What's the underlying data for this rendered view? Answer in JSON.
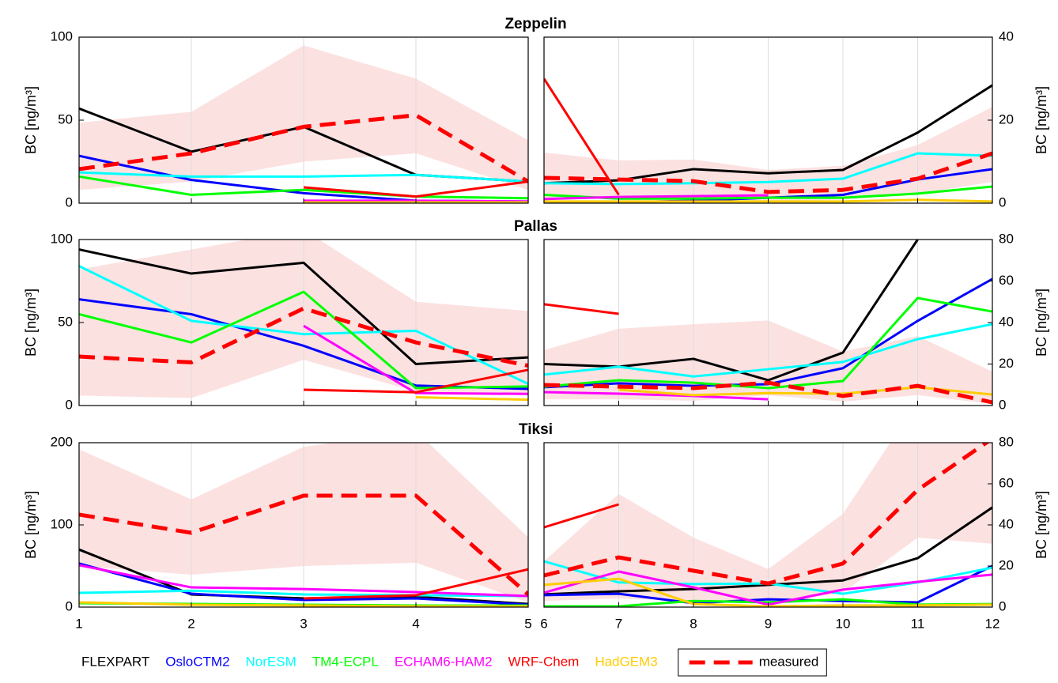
{
  "chart_data": [
    {
      "type": "line",
      "title": "Zeppelin",
      "y_label": "BC [ng/m³]",
      "x": [
        1,
        2,
        3,
        4,
        5
      ],
      "xlim": [
        1,
        5
      ],
      "xticks": [
        1,
        2,
        3,
        4,
        5
      ],
      "show_xtick_labels": false,
      "ylim": [
        0,
        100
      ],
      "yticks": [
        0,
        50,
        100
      ],
      "y_side": "left",
      "grid": true,
      "band": {
        "color": "#fce1e1",
        "low": [
          8,
          13,
          25,
          30,
          8
        ],
        "high": [
          48.5,
          55,
          95,
          75,
          38
        ]
      },
      "series": [
        {
          "name": "FLEXPART",
          "color": "#000000",
          "values": [
            57,
            31,
            46,
            17,
            13
          ]
        },
        {
          "name": "OsloCTM2",
          "color": "#0000ff",
          "values": [
            28.5,
            14,
            6,
            1.5,
            1
          ]
        },
        {
          "name": "NorESM",
          "color": "#00ffff",
          "values": [
            18.5,
            16,
            16,
            17,
            13
          ]
        },
        {
          "name": "TM4-ECPL",
          "color": "#00ff00",
          "values": [
            16,
            5,
            8,
            4,
            3
          ]
        },
        {
          "name": "ECHAM6-HAM2",
          "color": "#ff00ff",
          "values": [
            null,
            null,
            1.5,
            1.5,
            1
          ]
        },
        {
          "name": "WRF-Chem",
          "color": "#ff0000",
          "values": [
            null,
            null,
            9.5,
            4,
            13
          ]
        },
        {
          "name": "HadGEM3",
          "color": "#ffcc00",
          "values": [
            null,
            null,
            0.5,
            0.5,
            0.5
          ]
        },
        {
          "name": "measured",
          "color": "#ff0000",
          "dashed": true,
          "values": [
            20.5,
            30,
            46,
            53,
            13
          ]
        }
      ]
    },
    {
      "type": "line",
      "y_label": "BC [ng/m³]",
      "x": [
        6,
        7,
        8,
        9,
        10,
        11,
        12
      ],
      "xlim": [
        6,
        12
      ],
      "xticks": [
        6,
        7,
        8,
        9,
        10,
        11,
        12
      ],
      "show_xtick_labels": false,
      "ylim": [
        0,
        40
      ],
      "yticks": [
        0,
        20,
        40
      ],
      "y_side": "right",
      "grid": true,
      "band": {
        "color": "#fce1e1",
        "low": [
          1.3,
          1.1,
          1,
          0.6,
          0.8,
          2.3,
          5.1
        ],
        "high": [
          12.2,
          10.3,
          10.5,
          8,
          9,
          14,
          23.2
        ]
      },
      "series": [
        {
          "values": [
            4.8,
            5.5,
            8.2,
            7.2,
            8,
            17,
            28.4
          ]
        },
        {
          "values": [
            0.4,
            0.2,
            0.6,
            1.3,
            2,
            5.7,
            8.2
          ]
        },
        {
          "values": [
            4.8,
            4.6,
            4.8,
            5.1,
            5.9,
            12,
            11.4
          ]
        },
        {
          "values": [
            2,
            1.1,
            1.1,
            1.3,
            1.3,
            2.3,
            4
          ]
        },
        {
          "values": [
            1,
            1.5,
            1.7,
            1.9,
            null,
            null,
            null
          ]
        },
        {
          "values": [
            30,
            2,
            null,
            null,
            null,
            null,
            null
          ]
        },
        {
          "values": [
            0.4,
            0.4,
            0.4,
            0.4,
            0.4,
            0.8,
            0.4
          ]
        },
        {
          "values": [
            6.1,
            5.7,
            5.3,
            2.7,
            3.2,
            5.9,
            12
          ]
        }
      ]
    },
    {
      "type": "line",
      "title": "Pallas",
      "y_label": "BC [ng/m³]",
      "x": [
        1,
        2,
        3,
        4,
        5
      ],
      "xlim": [
        1,
        5
      ],
      "xticks": [
        1,
        2,
        3,
        4,
        5
      ],
      "show_xtick_labels": false,
      "ylim": [
        0,
        100
      ],
      "yticks": [
        0,
        50,
        100
      ],
      "y_side": "left",
      "grid": true,
      "band": {
        "color": "#fce1e1",
        "low": [
          6,
          4.5,
          27.5,
          8.5,
          6
        ],
        "high": [
          82,
          94,
          106,
          62.5,
          57
        ]
      },
      "series": [
        {
          "values": [
            94,
            79.5,
            86,
            25,
            29
          ]
        },
        {
          "values": [
            64,
            55,
            36,
            12,
            10
          ]
        },
        {
          "values": [
            84,
            51,
            43,
            45,
            13
          ]
        },
        {
          "values": [
            55,
            38,
            68.5,
            10.5,
            11.5
          ]
        },
        {
          "values": [
            null,
            null,
            48,
            7.5,
            7
          ]
        },
        {
          "values": [
            null,
            null,
            9.5,
            8,
            21.5
          ]
        },
        {
          "values": [
            null,
            null,
            null,
            5,
            3.5
          ]
        },
        {
          "values": [
            29.5,
            26,
            58.5,
            38,
            24
          ]
        }
      ]
    },
    {
      "type": "line",
      "y_label": "BC [ng/m³]",
      "x": [
        6,
        7,
        8,
        9,
        10,
        11,
        12
      ],
      "xlim": [
        6,
        12
      ],
      "xticks": [
        6,
        7,
        8,
        9,
        10,
        11,
        12
      ],
      "show_xtick_labels": false,
      "ylim": [
        0,
        80
      ],
      "yticks": [
        0,
        20,
        40,
        60,
        80
      ],
      "y_side": "right",
      "grid": true,
      "band": {
        "color": "#fce1e1",
        "low": [
          3,
          3,
          2.3,
          5,
          1.9,
          5,
          0.8
        ],
        "high": [
          26.7,
          37,
          39.2,
          41,
          26,
          33.5,
          16.4
        ]
      },
      "series": [
        {
          "values": [
            20,
            18.7,
            22.5,
            12.2,
            25.5,
            80,
            null
          ]
        },
        {
          "values": [
            8.8,
            10.7,
            9.5,
            10.3,
            18,
            40.8,
            61
          ]
        },
        {
          "values": [
            14.9,
            18.7,
            14,
            17.5,
            21,
            32,
            39.2
          ]
        },
        {
          "values": [
            9.1,
            12.2,
            11,
            8.4,
            11.8,
            51.8,
            45.3
          ]
        },
        {
          "values": [
            6.5,
            5.7,
            4.6,
            3,
            null,
            null,
            null
          ]
        },
        {
          "values": [
            48.8,
            44.2,
            null,
            null,
            null,
            null,
            null
          ]
        },
        {
          "values": [
            null,
            7.6,
            5,
            6,
            5.7,
            8.8,
            5.3
          ]
        },
        {
          "values": [
            9.9,
            9.1,
            8.4,
            11,
            4.6,
            9.5,
            1.5
          ]
        }
      ]
    },
    {
      "type": "line",
      "title": "Tiksi",
      "y_label": "BC [ng/m³]",
      "x": [
        1,
        2,
        3,
        4,
        5
      ],
      "xlim": [
        1,
        5
      ],
      "xticks": [
        1,
        2,
        3,
        4,
        5
      ],
      "show_xtick_labels": true,
      "ylim": [
        0,
        200
      ],
      "yticks": [
        0,
        100,
        200
      ],
      "y_side": "left",
      "grid": true,
      "band": {
        "color": "#fce1e1",
        "low": [
          50,
          39.4,
          50,
          54,
          5.8
        ],
        "high": [
          192,
          131,
          195,
          214,
          85
        ]
      },
      "series": [
        {
          "values": [
            70,
            15.4,
            10.6,
            12.5,
            3.8
          ]
        },
        {
          "values": [
            53,
            16.3,
            8.7,
            10.6,
            2.9
          ]
        },
        {
          "values": [
            17.3,
            20,
            15.4,
            14.4,
            13.5
          ]
        },
        {
          "values": [
            4.8,
            3.8,
            2.9,
            1.9,
            1.9
          ]
        },
        {
          "values": [
            51,
            24,
            22,
            18.3,
            13.5
          ]
        },
        {
          "values": [
            null,
            null,
            10.6,
            14.4,
            46
          ]
        },
        {
          "values": [
            5.8,
            2.9,
            2,
            1,
            1
          ]
        },
        {
          "values": [
            112.5,
            90.4,
            135.6,
            135.6,
            15.4
          ]
        }
      ]
    },
    {
      "type": "line",
      "y_label": "BC [ng/m³]",
      "x": [
        6,
        7,
        8,
        9,
        10,
        11,
        12
      ],
      "xlim": [
        6,
        12
      ],
      "xticks": [
        6,
        7,
        8,
        9,
        10,
        11,
        12
      ],
      "show_xtick_labels": true,
      "ylim": [
        0,
        80
      ],
      "yticks": [
        0,
        20,
        40,
        60,
        80
      ],
      "y_side": "right",
      "grid": true,
      "band": {
        "color": "#fce1e1",
        "low": [
          3,
          4.2,
          3,
          1.9,
          7,
          33.8,
          30.8
        ],
        "high": [
          22.3,
          55,
          33.8,
          18.5,
          45.4,
          100,
          100
        ]
      },
      "series": [
        {
          "values": [
            6.2,
            7.7,
            8.8,
            10.8,
            13,
            23.8,
            48.5
          ]
        },
        {
          "values": [
            5.8,
            6.5,
            1.9,
            3.8,
            3,
            2.3,
            20
          ]
        },
        {
          "values": [
            22.3,
            12,
            11.2,
            11.5,
            6.5,
            12,
            19.2
          ]
        },
        {
          "values": [
            0.4,
            0.4,
            3,
            2.3,
            3.8,
            1.2,
            1.5
          ]
        },
        {
          "values": [
            7,
            17.3,
            9.6,
            1.2,
            8.5,
            12.3,
            15.8
          ]
        },
        {
          "values": [
            38.8,
            50,
            null,
            null,
            null,
            null,
            null
          ]
        },
        {
          "values": [
            10.8,
            13.8,
            1.5,
            0.4,
            0.8,
            0.8,
            1.2
          ]
        },
        {
          "values": [
            15.4,
            24.2,
            17.7,
            11.5,
            21.2,
            57,
            82
          ]
        }
      ]
    }
  ]
}
